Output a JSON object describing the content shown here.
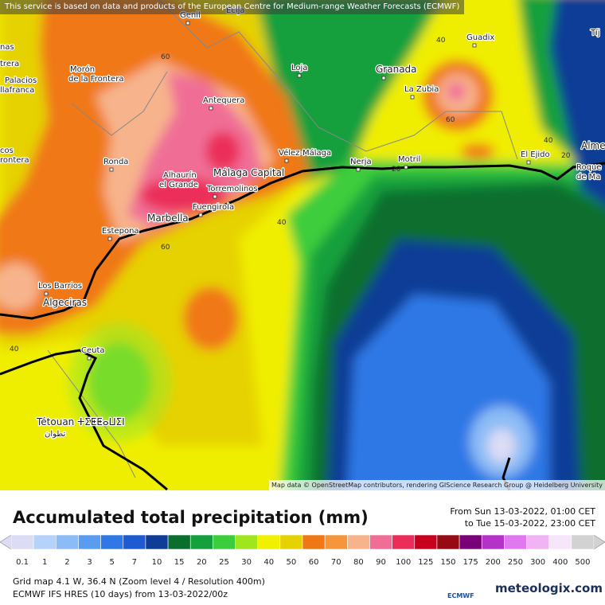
{
  "notice": "This service is based on data and products of the European Centre for Medium-range Weather Forecasts (ECMWF)",
  "attribution": "Map data © OpenStreetMap contributors, rendering GIScience Research Group @ Heidelberg University",
  "places": [
    "Genil",
    "Ecija",
    "nas",
    "trera",
    "Palacios",
    "llafranca",
    "Morón",
    "de la Frontera",
    "Loja",
    "Guadix",
    "Granada",
    "La Zubia",
    "Antequera",
    "cos",
    "rontera",
    "Ronda",
    "Vélez-Málaga",
    "Nerja",
    "Motril",
    "El Ejido",
    "Alme",
    "Roque",
    "de Ma",
    "Tíj",
    "Alhaurín",
    "el Grande",
    "Málaga Capital",
    "Torremolinos",
    "Fuengirola",
    "Marbella",
    "Estepona",
    "Los Barrios",
    "Algeciras",
    "Ceuta",
    "Tétouan ⵜⵉⵟⵟⴰⵡⵉⵏ",
    "تطوان"
  ],
  "contour_labels": [
    40,
    40,
    40,
    40,
    60,
    60,
    60,
    20,
    20
  ],
  "title": "Accumulated total precipitation (mm)",
  "period": [
    "From Sun 13-03-2022, 01:00 CET",
    "to Tue 15-03-2022, 23:00 CET"
  ],
  "legend": {
    "values": [
      0.1,
      1,
      2,
      3,
      5,
      7,
      10,
      15,
      20,
      25,
      30,
      40,
      50,
      60,
      70,
      80,
      90,
      100,
      125,
      150,
      175,
      200,
      250,
      300,
      400,
      500
    ],
    "colors": [
      "#dcdcf5",
      "#b4d2fa",
      "#8cbcf5",
      "#5a9cf0",
      "#2f78e6",
      "#1e5ad2",
      "#0f3c96",
      "#0a6e2d",
      "#14a03c",
      "#3ccd3c",
      "#a0e61e",
      "#f0f000",
      "#e6d200",
      "#f07814",
      "#f5963c",
      "#f7b48c",
      "#f06e96",
      "#eb2d5a",
      "#c8001e",
      "#960a14",
      "#780078",
      "#b432c8",
      "#e178f0",
      "#f0b4f5",
      "#f5e6fa",
      "#d2d2d2"
    ]
  },
  "footer": [
    "Grid map 4.1 W, 36.4 N (Zoom level 4 / Resolution 400m)",
    "ECMWF IFS HRES (10 days) from 13-03-2022/00z"
  ],
  "logos": [
    "ECMWF",
    "meteologix.com"
  ]
}
